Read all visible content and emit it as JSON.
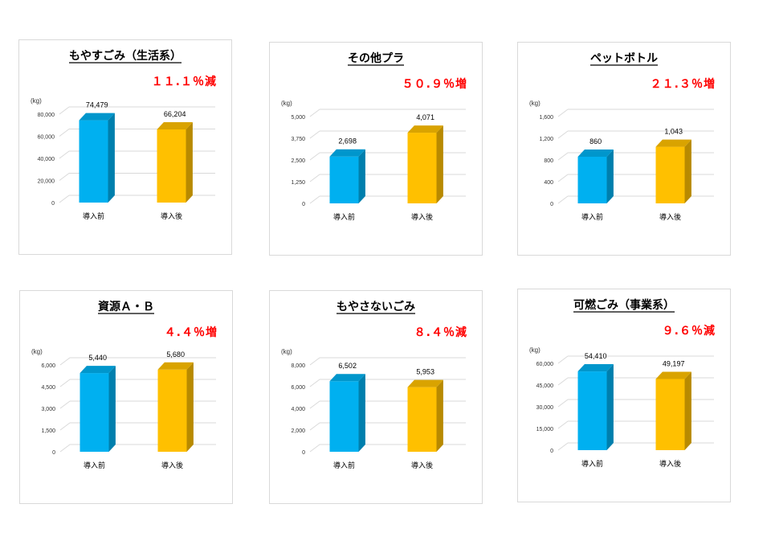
{
  "colors": {
    "before": "#00B0F0",
    "after": "#FFC000",
    "change": "#FF0000",
    "grid": "#d9d9d9"
  },
  "chart_data": [
    {
      "type": "bar",
      "title": "もやすごみ（生活系）",
      "change_label": "１１.１％減",
      "ylabel": "(kg)",
      "categories": [
        "導入前",
        "導入後"
      ],
      "values": [
        74479,
        66204
      ],
      "data_labels": [
        "74,479",
        "66,204"
      ],
      "ylim": [
        0,
        80000
      ],
      "yticks": [
        0,
        20000,
        40000,
        60000,
        80000
      ],
      "ytick_labels": [
        "0",
        "20,000",
        "40,000",
        "60,000",
        "80,000"
      ],
      "grid": true
    },
    {
      "type": "bar",
      "title": "その他プラ",
      "change_label": "５０.９％増",
      "ylabel": "(kg)",
      "categories": [
        "導入前",
        "導入後"
      ],
      "values": [
        2698,
        4071
      ],
      "data_labels": [
        "2,698",
        "4,071"
      ],
      "ylim": [
        0,
        5000
      ],
      "yticks": [
        0,
        1250,
        2500,
        3750,
        5000
      ],
      "ytick_labels": [
        "0",
        "1,250",
        "2,500",
        "3,750",
        "5,000"
      ],
      "grid": true
    },
    {
      "type": "bar",
      "title": "ペットボトル",
      "change_label": "２１.３％増",
      "ylabel": "(kg)",
      "categories": [
        "導入前",
        "導入後"
      ],
      "values": [
        860,
        1043
      ],
      "data_labels": [
        "860",
        "1,043"
      ],
      "ylim": [
        0,
        1600
      ],
      "yticks": [
        0,
        400,
        800,
        1200,
        1600
      ],
      "ytick_labels": [
        "0",
        "400",
        "800",
        "1,200",
        "1,600"
      ],
      "grid": true
    },
    {
      "type": "bar",
      "title": "資源Ａ・Ｂ",
      "change_label": "４.４％増",
      "ylabel": "(kg)",
      "categories": [
        "導入前",
        "導入後"
      ],
      "values": [
        5440,
        5680
      ],
      "data_labels": [
        "5,440",
        "5,680"
      ],
      "ylim": [
        0,
        6000
      ],
      "yticks": [
        0,
        1500,
        3000,
        4500,
        6000
      ],
      "ytick_labels": [
        "0",
        "1,500",
        "3,000",
        "4,500",
        "6,000"
      ],
      "grid": true
    },
    {
      "type": "bar",
      "title": "もやさないごみ",
      "change_label": "８.４％減",
      "ylabel": "(kg)",
      "categories": [
        "導入前",
        "導入後"
      ],
      "values": [
        6502,
        5953
      ],
      "data_labels": [
        "6,502",
        "5,953"
      ],
      "ylim": [
        0,
        8000
      ],
      "yticks": [
        0,
        2000,
        4000,
        6000,
        8000
      ],
      "ytick_labels": [
        "0",
        "2,000",
        "4,000",
        "6,000",
        "8,000"
      ],
      "grid": true
    },
    {
      "type": "bar",
      "title": "可燃ごみ（事業系）",
      "change_label": "９.６％減",
      "ylabel": "(kg)",
      "categories": [
        "導入前",
        "導入後"
      ],
      "values": [
        54410,
        49197
      ],
      "data_labels": [
        "54,410",
        "49,197"
      ],
      "ylim": [
        0,
        60000
      ],
      "yticks": [
        0,
        15000,
        30000,
        45000,
        60000
      ],
      "ytick_labels": [
        "0",
        "15,000",
        "30,000",
        "45,000",
        "60,000"
      ],
      "grid": true
    }
  ]
}
